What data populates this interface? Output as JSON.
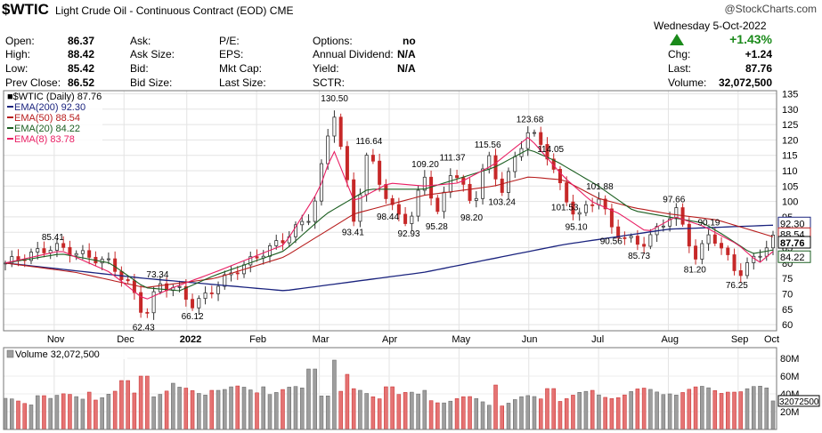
{
  "header": {
    "symbol": "$WTIC",
    "name": "Light Crude Oil - Continuous Contract (EOD)",
    "exchange": "CME",
    "logo": "@StockCharts.com",
    "date_text": "Wednesday  5-Oct-2022",
    "pct_change": "+1.43%",
    "accent_up": "#1a8a1a"
  },
  "quote": [
    {
      "label": "Open:",
      "value": "86.37"
    },
    {
      "label": "High:",
      "value": "88.42"
    },
    {
      "label": "Low:",
      "value": "85.42"
    },
    {
      "label": "Prev Close:",
      "value": "86.52"
    },
    {
      "label": "Ask:",
      "value": ""
    },
    {
      "label": "Ask Size:",
      "value": ""
    },
    {
      "label": "Bid:",
      "value": ""
    },
    {
      "label": "Bid Size:",
      "value": ""
    },
    {
      "label": "P/E:",
      "value": ""
    },
    {
      "label": "EPS:",
      "value": ""
    },
    {
      "label": "Mkt Cap:",
      "value": ""
    },
    {
      "label": "Last Size:",
      "value": ""
    },
    {
      "label": "Options:",
      "value": "no"
    },
    {
      "label": "Annual Dividend:",
      "value": "N/A"
    },
    {
      "label": "Yield:",
      "value": "N/A"
    },
    {
      "label": "SCTR:",
      "value": ""
    },
    {
      "label": "Chg:",
      "value": "+1.24"
    },
    {
      "label": "Last:",
      "value": "87.76"
    },
    {
      "label": "Volume:",
      "value": "32,072,500"
    }
  ],
  "chart_data": {
    "type": "line",
    "price_legend": "$WTIC (Daily) 87.76",
    "indicators": [
      {
        "name": "EMA(200) 92.30",
        "color": "#1a237e",
        "last": 92.3,
        "anchors": [
          [
            0,
            80
          ],
          [
            20,
            75
          ],
          [
            40,
            71
          ],
          [
            60,
            77
          ],
          [
            80,
            86
          ],
          [
            95,
            91
          ],
          [
            110,
            92.3
          ]
        ]
      },
      {
        "name": "EMA(50) 88.54",
        "color": "#b71c1c",
        "last": 88.54,
        "anchors": [
          [
            0,
            80
          ],
          [
            10,
            77
          ],
          [
            20,
            72
          ],
          [
            30,
            75
          ],
          [
            40,
            82
          ],
          [
            50,
            96
          ],
          [
            60,
            102
          ],
          [
            70,
            105
          ],
          [
            75,
            108
          ],
          [
            80,
            107
          ],
          [
            85,
            101
          ],
          [
            90,
            98
          ],
          [
            95,
            96
          ],
          [
            102,
            94
          ],
          [
            110,
            88.54
          ]
        ]
      },
      {
        "name": "EMA(20) 84.22",
        "color": "#1b5e20",
        "last": 84.22,
        "anchors": [
          [
            0,
            80
          ],
          [
            8,
            83
          ],
          [
            15,
            80
          ],
          [
            20,
            72
          ],
          [
            25,
            71
          ],
          [
            30,
            76
          ],
          [
            40,
            84
          ],
          [
            46,
            96
          ],
          [
            52,
            104
          ],
          [
            60,
            104
          ],
          [
            70,
            111
          ],
          [
            75,
            117
          ],
          [
            79,
            113
          ],
          [
            85,
            105
          ],
          [
            90,
            97
          ],
          [
            95,
            95
          ],
          [
            100,
            93
          ],
          [
            103,
            89
          ],
          [
            107,
            83
          ],
          [
            110,
            84.22
          ]
        ]
      },
      {
        "name": "EMA(8) 83.78",
        "color": "#e91e63",
        "last": 83.78,
        "anchors": [
          [
            0,
            80
          ],
          [
            8,
            84
          ],
          [
            15,
            77
          ],
          [
            20,
            68
          ],
          [
            24,
            72
          ],
          [
            30,
            77
          ],
          [
            40,
            86
          ],
          [
            45,
            104
          ],
          [
            47,
            117
          ],
          [
            50,
            100
          ],
          [
            55,
            106
          ],
          [
            60,
            105
          ],
          [
            65,
            106
          ],
          [
            70,
            112
          ],
          [
            75,
            121
          ],
          [
            80,
            108
          ],
          [
            84,
            100
          ],
          [
            88,
            96
          ],
          [
            92,
            90
          ],
          [
            96,
            95
          ],
          [
            100,
            92
          ],
          [
            105,
            86
          ],
          [
            108,
            80
          ],
          [
            110,
            83.78
          ]
        ]
      }
    ],
    "close_anchors": [
      [
        0,
        80
      ],
      [
        7,
        85.41
      ],
      [
        15,
        80
      ],
      [
        18,
        72
      ],
      [
        20,
        62.43
      ],
      [
        22,
        73.34
      ],
      [
        25,
        71
      ],
      [
        27,
        66.12
      ],
      [
        32,
        76
      ],
      [
        40,
        88
      ],
      [
        44,
        96
      ],
      [
        47,
        130.5
      ],
      [
        50,
        93.41
      ],
      [
        52,
        116.64
      ],
      [
        55,
        98.44
      ],
      [
        58,
        92.93
      ],
      [
        60,
        109.2
      ],
      [
        62,
        95.28
      ],
      [
        64,
        111.37
      ],
      [
        67,
        98.2
      ],
      [
        69,
        115.56
      ],
      [
        71,
        103.24
      ],
      [
        75,
        123.68
      ],
      [
        78,
        114.05
      ],
      [
        80,
        101.53
      ],
      [
        82,
        95.1
      ],
      [
        85,
        101.88
      ],
      [
        87,
        90.56
      ],
      [
        91,
        85.73
      ],
      [
        94,
        92
      ],
      [
        96,
        97.66
      ],
      [
        99,
        81.2
      ],
      [
        101,
        90.19
      ],
      [
        105,
        76.25
      ],
      [
        108,
        83
      ],
      [
        110,
        87.76
      ]
    ],
    "annotations": [
      {
        "text": "85.41",
        "i": 7,
        "v": 85.41,
        "above": true
      },
      {
        "text": "62.43",
        "i": 20,
        "v": 62.43,
        "above": false
      },
      {
        "text": "73.34",
        "i": 22,
        "v": 73.34,
        "above": true
      },
      {
        "text": "66.12",
        "i": 27,
        "v": 66.12,
        "above": false
      },
      {
        "text": "130.50",
        "i": 47,
        "v": 130.5,
        "above": true
      },
      {
        "text": "93.41",
        "i": 50,
        "v": 93.41,
        "above": false
      },
      {
        "text": "116.64",
        "i": 52,
        "v": 116.64,
        "above": true
      },
      {
        "text": "98.44",
        "i": 55,
        "v": 98.44,
        "above": false
      },
      {
        "text": "92.93",
        "i": 58,
        "v": 92.93,
        "above": false
      },
      {
        "text": "109.20",
        "i": 60,
        "v": 109.2,
        "above": true
      },
      {
        "text": "95.28",
        "i": 62,
        "v": 95.28,
        "above": false
      },
      {
        "text": "111.37",
        "i": 64,
        "v": 111.37,
        "above": true
      },
      {
        "text": "98.20",
        "i": 67,
        "v": 98.2,
        "above": false
      },
      {
        "text": "115.56",
        "i": 69,
        "v": 115.56,
        "above": true
      },
      {
        "text": "103.24",
        "i": 71,
        "v": 103.24,
        "above": false
      },
      {
        "text": "123.68",
        "i": 75,
        "v": 123.68,
        "above": true
      },
      {
        "text": "114.05",
        "i": 78,
        "v": 114.05,
        "above": true
      },
      {
        "text": "101.53",
        "i": 80,
        "v": 101.53,
        "above": false
      },
      {
        "text": "95.10",
        "i": 82,
        "v": 95.1,
        "above": false
      },
      {
        "text": "101.88",
        "i": 85,
        "v": 101.88,
        "above": true
      },
      {
        "text": "90.56",
        "i": 87,
        "v": 90.56,
        "above": false
      },
      {
        "text": "85.73",
        "i": 91,
        "v": 85.73,
        "above": false
      },
      {
        "text": "97.66",
        "i": 96,
        "v": 97.66,
        "above": true
      },
      {
        "text": "81.20",
        "i": 99,
        "v": 81.2,
        "above": false
      },
      {
        "text": "90.19",
        "i": 101,
        "v": 90.19,
        "above": true
      },
      {
        "text": "76.25",
        "i": 105,
        "v": 76.25,
        "above": false
      }
    ],
    "y_ticks": [
      60,
      65,
      70,
      75,
      80,
      85,
      90,
      95,
      100,
      105,
      110,
      115,
      120,
      125,
      130,
      135
    ],
    "ylim": [
      58,
      136
    ],
    "x_months": [
      {
        "label": "Nov",
        "i": 7
      },
      {
        "label": "Dec",
        "i": 17
      },
      {
        "label": "2022",
        "i": 26
      },
      {
        "label": "Feb",
        "i": 36
      },
      {
        "label": "Mar",
        "i": 45
      },
      {
        "label": "Apr",
        "i": 55
      },
      {
        "label": "May",
        "i": 65
      },
      {
        "label": "Jun",
        "i": 75
      },
      {
        "label": "Jul",
        "i": 85
      },
      {
        "label": "Aug",
        "i": 95
      },
      {
        "label": "Sep",
        "i": 105
      },
      {
        "label": "Oct",
        "i": 114
      }
    ],
    "right_tags": [
      {
        "text": "92.30",
        "v": 92.3,
        "color": "#1a237e"
      },
      {
        "text": "88.54",
        "v": 88.54,
        "color": "#b71c1c"
      },
      {
        "text": "87.76",
        "v": 87.76,
        "color": "#000000"
      },
      {
        "text": "84.22",
        "v": 84.22,
        "color": "#1b5e20"
      }
    ],
    "volume": {
      "legend": "Volume 32,072,500",
      "ticks": [
        "80M",
        "60M",
        "40M",
        "20M"
      ],
      "tick_values": [
        80,
        60,
        40,
        20
      ],
      "ylim": [
        0,
        92
      ],
      "last_tag": "32072500",
      "last": 32.0725,
      "base": 30,
      "spikes": [
        [
          5,
          38
        ],
        [
          12,
          42
        ],
        [
          17,
          55
        ],
        [
          20,
          60
        ],
        [
          24,
          52
        ],
        [
          30,
          44
        ],
        [
          37,
          48
        ],
        [
          44,
          68
        ],
        [
          47,
          78
        ],
        [
          49,
          62
        ],
        [
          55,
          48
        ],
        [
          60,
          44
        ],
        [
          70,
          50
        ],
        [
          78,
          46
        ],
        [
          84,
          44
        ],
        [
          95,
          40
        ],
        [
          104,
          42
        ]
      ]
    },
    "n_bars": 120,
    "grid": true
  }
}
